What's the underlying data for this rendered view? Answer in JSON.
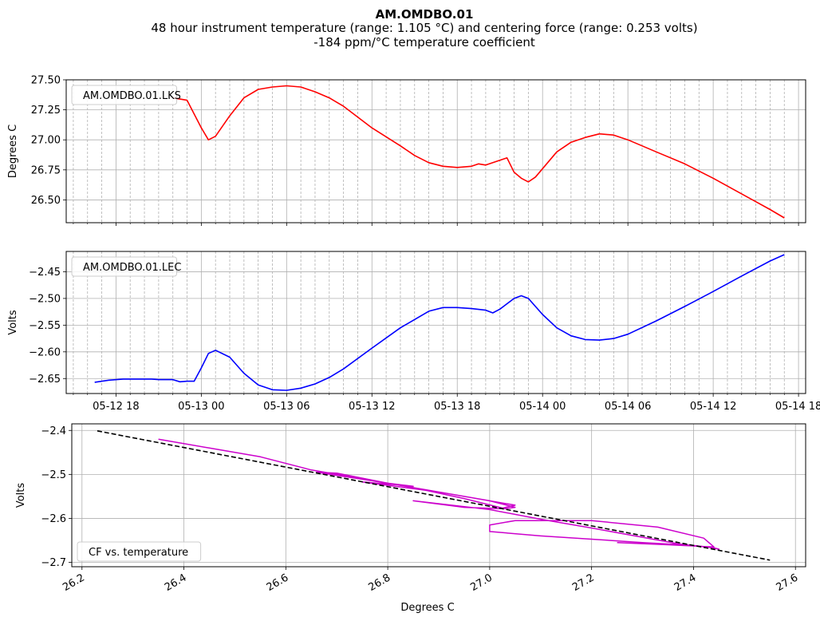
{
  "figure": {
    "title": "AM.OMDBO.01",
    "subtitle_1": "48 hour instrument temperature (range: 1.105 °C) and centering force (range: 0.253 volts)",
    "subtitle_2": "-184 ppm/°C temperature coefficient"
  },
  "chart_data": [
    {
      "type": "line",
      "legend": "AM.OMDBO.01.LKS",
      "legend_position": "top-left",
      "ylabel": "Degrees C",
      "xlim": [
        "2024-05-12T14:30",
        "2024-05-14T18:30"
      ],
      "ylim": [
        26.31,
        27.5
      ],
      "yticks": [
        26.5,
        26.75,
        27.0,
        27.25,
        27.5
      ],
      "ytick_labels": [
        "26.50",
        "26.75",
        "27.00",
        "27.25",
        "27.50"
      ],
      "grid": true,
      "color": "#ff0000",
      "x": [
        "2024-05-12T22:00",
        "2024-05-12T23:00",
        "2024-05-13T00:00",
        "2024-05-13T00:30",
        "2024-05-13T01:00",
        "2024-05-13T02:00",
        "2024-05-13T03:00",
        "2024-05-13T04:00",
        "2024-05-13T05:00",
        "2024-05-13T06:00",
        "2024-05-13T07:00",
        "2024-05-13T08:00",
        "2024-05-13T09:00",
        "2024-05-13T10:00",
        "2024-05-13T12:00",
        "2024-05-13T14:00",
        "2024-05-13T15:00",
        "2024-05-13T16:00",
        "2024-05-13T17:00",
        "2024-05-13T18:00",
        "2024-05-13T19:00",
        "2024-05-13T19:30",
        "2024-05-13T20:00",
        "2024-05-13T21:00",
        "2024-05-13T21:30",
        "2024-05-13T22:00",
        "2024-05-13T22:30",
        "2024-05-13T23:00",
        "2024-05-13T23:30",
        "2024-05-14T00:00",
        "2024-05-14T01:00",
        "2024-05-14T02:00",
        "2024-05-14T03:00",
        "2024-05-14T04:00",
        "2024-05-14T05:00",
        "2024-05-14T06:00",
        "2024-05-14T08:00",
        "2024-05-14T10:00",
        "2024-05-14T12:00",
        "2024-05-14T14:00",
        "2024-05-14T16:00",
        "2024-05-14T17:00"
      ],
      "y": [
        27.35,
        27.33,
        27.1,
        27.0,
        27.03,
        27.2,
        27.35,
        27.42,
        27.44,
        27.45,
        27.44,
        27.4,
        27.35,
        27.28,
        27.1,
        26.95,
        26.87,
        26.81,
        26.78,
        26.77,
        26.78,
        26.8,
        26.79,
        26.83,
        26.85,
        26.73,
        26.68,
        26.65,
        26.69,
        26.76,
        26.9,
        26.98,
        27.02,
        27.05,
        27.04,
        27.0,
        26.9,
        26.8,
        26.68,
        26.55,
        26.42,
        26.35
      ]
    },
    {
      "type": "line",
      "legend": "AM.OMDBO.01.LEC",
      "legend_position": "top-left",
      "ylabel": "Volts",
      "xlim": [
        "2024-05-12T14:30",
        "2024-05-14T18:30"
      ],
      "xticks": [
        "2024-05-12T18:00",
        "2024-05-13T00:00",
        "2024-05-13T06:00",
        "2024-05-13T12:00",
        "2024-05-13T18:00",
        "2024-05-14T00:00",
        "2024-05-14T06:00",
        "2024-05-14T12:00",
        "2024-05-14T18:00"
      ],
      "xtick_labels": [
        "05-12 18",
        "05-13 00",
        "05-13 06",
        "05-13 12",
        "05-13 18",
        "05-14 00",
        "05-14 06",
        "05-14 12",
        "05-14 18"
      ],
      "ylim": [
        -2.678,
        -2.412
      ],
      "yticks": [
        -2.65,
        -2.6,
        -2.55,
        -2.5,
        -2.45
      ],
      "ytick_labels": [
        "−2.65",
        "−2.60",
        "−2.55",
        "−2.50",
        "−2.45"
      ],
      "grid": true,
      "color": "#0000ff",
      "x": [
        "2024-05-12T16:30",
        "2024-05-12T17:30",
        "2024-05-12T18:30",
        "2024-05-12T19:30",
        "2024-05-12T20:30",
        "2024-05-12T21:00",
        "2024-05-12T22:00",
        "2024-05-12T22:30",
        "2024-05-12T23:00",
        "2024-05-12T23:30",
        "2024-05-13T00:00",
        "2024-05-13T00:30",
        "2024-05-13T01:00",
        "2024-05-13T02:00",
        "2024-05-13T03:00",
        "2024-05-13T04:00",
        "2024-05-13T05:00",
        "2024-05-13T06:00",
        "2024-05-13T07:00",
        "2024-05-13T08:00",
        "2024-05-13T09:00",
        "2024-05-13T10:00",
        "2024-05-13T12:00",
        "2024-05-13T14:00",
        "2024-05-13T16:00",
        "2024-05-13T17:00",
        "2024-05-13T18:00",
        "2024-05-13T19:00",
        "2024-05-13T20:00",
        "2024-05-13T20:30",
        "2024-05-13T21:00",
        "2024-05-13T22:00",
        "2024-05-13T22:30",
        "2024-05-13T23:00",
        "2024-05-14T00:00",
        "2024-05-14T01:00",
        "2024-05-14T02:00",
        "2024-05-14T03:00",
        "2024-05-14T04:00",
        "2024-05-14T05:00",
        "2024-05-14T06:00",
        "2024-05-14T08:00",
        "2024-05-14T10:00",
        "2024-05-14T12:00",
        "2024-05-14T14:00",
        "2024-05-14T16:00",
        "2024-05-14T17:00"
      ],
      "y": [
        -2.657,
        -2.653,
        -2.651,
        -2.651,
        -2.651,
        -2.652,
        -2.652,
        -2.656,
        -2.655,
        -2.655,
        -2.63,
        -2.603,
        -2.597,
        -2.61,
        -2.64,
        -2.662,
        -2.671,
        -2.672,
        -2.668,
        -2.66,
        -2.648,
        -2.632,
        -2.593,
        -2.555,
        -2.524,
        -2.517,
        -2.517,
        -2.519,
        -2.522,
        -2.527,
        -2.52,
        -2.5,
        -2.495,
        -2.5,
        -2.53,
        -2.555,
        -2.57,
        -2.577,
        -2.578,
        -2.575,
        -2.567,
        -2.542,
        -2.515,
        -2.487,
        -2.458,
        -2.43,
        -2.418
      ]
    },
    {
      "type": "line",
      "legend": "CF vs. temperature",
      "legend_position": "bottom-left",
      "xlabel": "Degrees C",
      "ylabel": "Volts",
      "xlim": [
        26.18,
        27.62
      ],
      "ylim": [
        -2.71,
        -2.385
      ],
      "xticks": [
        26.2,
        26.4,
        26.6,
        26.8,
        27.0,
        27.2,
        27.4,
        27.6
      ],
      "xtick_labels": [
        "26.2",
        "26.4",
        "26.6",
        "26.8",
        "27.0",
        "27.2",
        "27.4",
        "27.6"
      ],
      "yticks": [
        -2.7,
        -2.6,
        -2.5,
        -2.4
      ],
      "ytick_labels": [
        "−2.7",
        "−2.6",
        "−2.5",
        "−2.4"
      ],
      "grid": true,
      "color": "#cc00cc",
      "fit_color": "#000000",
      "x": [
        26.35,
        26.45,
        26.55,
        26.65,
        26.75,
        26.85,
        26.95,
        27.03,
        27.05,
        27.0,
        26.8,
        26.66,
        26.7,
        26.8,
        26.85,
        26.75,
        26.9,
        27.05,
        27.02,
        26.95,
        26.85,
        27.0,
        27.1,
        27.2,
        27.3,
        27.38,
        27.44,
        27.45,
        27.42,
        27.36,
        27.39,
        27.3,
        27.1,
        27.0,
        27.0,
        27.05,
        27.2,
        27.33,
        27.42,
        27.44,
        27.35,
        27.25
      ],
      "y": [
        -2.42,
        -2.44,
        -2.46,
        -2.49,
        -2.51,
        -2.53,
        -2.555,
        -2.578,
        -2.575,
        -2.56,
        -2.52,
        -2.495,
        -2.497,
        -2.52,
        -2.527,
        -2.517,
        -2.54,
        -2.57,
        -2.578,
        -2.575,
        -2.56,
        -2.58,
        -2.602,
        -2.622,
        -2.643,
        -2.66,
        -2.667,
        -2.67,
        -2.664,
        -2.657,
        -2.661,
        -2.655,
        -2.64,
        -2.63,
        -2.615,
        -2.605,
        -2.605,
        -2.62,
        -2.645,
        -2.665,
        -2.66,
        -2.655
      ],
      "fit_x": [
        26.23,
        27.55
      ],
      "fit_y": [
        -2.401,
        -2.695
      ]
    }
  ]
}
